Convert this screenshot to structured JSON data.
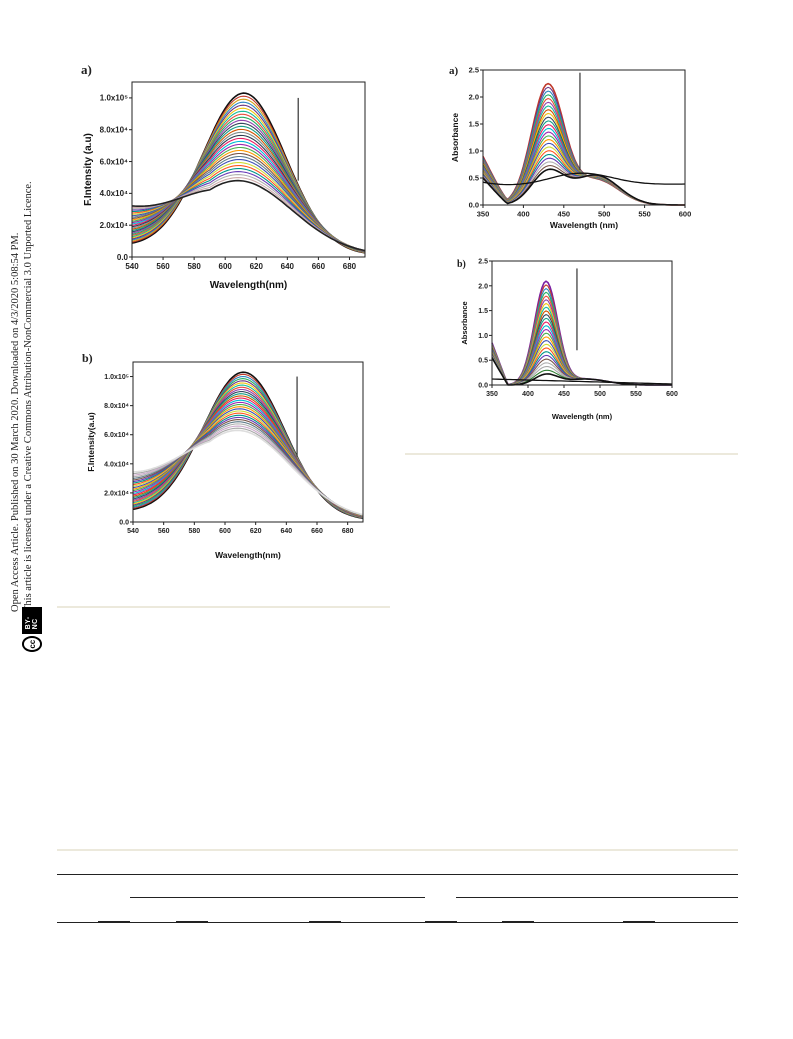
{
  "sidebar": {
    "line1": "Open Access Article. Published on 30 March 2020. Downloaded on 4/3/2020 5:08:54 PM.",
    "line2": "This article is licensed under a Creative Commons Attribution-NonCommercial 3.0 Unported Licence.",
    "badge_cc": "cc",
    "badge_by": "BY-NC"
  },
  "chart_data": [
    {
      "id": "fluor-a",
      "type": "line",
      "panel_label": "a)",
      "xlabel": "Wavelength(nm)",
      "ylabel": "F.Intensity (a.u)",
      "xlim": [
        540,
        690
      ],
      "ylim": [
        0,
        1.1
      ],
      "x_ticks": [
        "540",
        "560",
        "580",
        "600",
        "620",
        "640",
        "660",
        "680"
      ],
      "y_ticks": [
        "0.0",
        "2.0x10⁴",
        "4.0x10⁴",
        "6.0x10⁴",
        "8.0x10⁴",
        "1.0x10⁵"
      ],
      "peak_x": 612,
      "peak_max": 1.02,
      "peak_min": 0.47,
      "num_series": 30,
      "arrow": "down",
      "series_colors": [
        "#111111",
        "#c0392b",
        "#d4a017",
        "#2e86c1",
        "#6c3483",
        "#f1c40f",
        "#1abc9c",
        "#e74c3c",
        "#27ae60",
        "#8e44ad",
        "#34495e",
        "#16a085",
        "#d35400",
        "#7f8c8d",
        "#2c3e50",
        "#e91e63",
        "#00bcd4",
        "#9c27b0",
        "#4caf50",
        "#ff9800",
        "#795548",
        "#607d8b",
        "#3f51b5",
        "#cddc39",
        "#ff5722",
        "#009688",
        "#673ab7",
        "#b0b0b0",
        "#ccaaaa",
        "#222222"
      ]
    },
    {
      "id": "abs-a",
      "type": "line",
      "panel_label": "a)",
      "xlabel": "Wavelength (nm)",
      "ylabel": "Absorbance",
      "xlim": [
        350,
        600
      ],
      "ylim": [
        0,
        2.5
      ],
      "x_ticks": [
        "350",
        "400",
        "450",
        "500",
        "550",
        "600"
      ],
      "y_ticks": [
        "0.0",
        "0.5",
        "1.0",
        "1.5",
        "2.0",
        "2.5"
      ],
      "peak_x": 430,
      "peak_max": 2.2,
      "peak_min": 0.6,
      "num_series": 24,
      "arrow": "down",
      "series_colors": [
        "#c0392b",
        "#6c3483",
        "#2e86c1",
        "#27ae60",
        "#e74c3c",
        "#8e44ad",
        "#1abc9c",
        "#d35400",
        "#f1c40f",
        "#34495e",
        "#16a085",
        "#e91e63",
        "#00bcd4",
        "#9c27b0",
        "#4caf50",
        "#ff9800",
        "#3f51b5",
        "#cddc39",
        "#ff5722",
        "#009688",
        "#673ab7",
        "#b0b0b0",
        "#795548",
        "#111111"
      ]
    },
    {
      "id": "fluor-b",
      "type": "line",
      "panel_label": "b)",
      "xlabel": "Wavelength(nm)",
      "ylabel": "F.Intensity(a.u)",
      "xlim": [
        540,
        690
      ],
      "ylim": [
        0,
        1.1
      ],
      "x_ticks": [
        "540",
        "560",
        "580",
        "600",
        "620",
        "640",
        "660",
        "680"
      ],
      "y_ticks": [
        "0.0",
        "2.0x10⁴",
        "4.0x10⁴",
        "6.0x10⁴",
        "8.0x10⁴",
        "1.0x10⁵"
      ],
      "peak_x": 612,
      "peak_max": 1.02,
      "peak_min": 0.62,
      "num_series": 28,
      "arrow": "down",
      "series_colors": [
        "#111111",
        "#c0392b",
        "#2e86c1",
        "#27ae60",
        "#6c3483",
        "#f1c40f",
        "#1abc9c",
        "#e74c3c",
        "#8e44ad",
        "#34495e",
        "#16a085",
        "#d35400",
        "#e91e63",
        "#00bcd4",
        "#9c27b0",
        "#4caf50",
        "#ff9800",
        "#3f51b5",
        "#cddc39",
        "#ff5722",
        "#009688",
        "#673ab7",
        "#795548",
        "#607d8b",
        "#b0b0b0",
        "#ccaacc",
        "#aaaaaa",
        "#dddddd"
      ]
    },
    {
      "id": "abs-b",
      "type": "line",
      "panel_label": "b)",
      "xlabel": "Wavelength (nm)",
      "ylabel": "Absorbance",
      "xlim": [
        350,
        600
      ],
      "ylim": [
        0,
        2.5
      ],
      "x_ticks": [
        "350",
        "400",
        "450",
        "500",
        "550",
        "600"
      ],
      "y_ticks": [
        "0.0",
        "0.5",
        "1.0",
        "1.5",
        "2.0",
        "2.5"
      ],
      "peak_x": 425,
      "peak_max": 2.07,
      "peak_min": 0.2,
      "num_series": 26,
      "arrow": "down",
      "series_colors": [
        "#7b1fa2",
        "#c0392b",
        "#2e86c1",
        "#27ae60",
        "#e74c3c",
        "#8e44ad",
        "#f1c40f",
        "#1abc9c",
        "#d35400",
        "#34495e",
        "#16a085",
        "#e91e63",
        "#00bcd4",
        "#9c27b0",
        "#4caf50",
        "#ff9800",
        "#3f51b5",
        "#cddc39",
        "#ff5722",
        "#009688",
        "#673ab7",
        "#795548",
        "#b0b0b0",
        "#aaaaaa",
        "#2e7d32",
        "#111111"
      ]
    }
  ]
}
